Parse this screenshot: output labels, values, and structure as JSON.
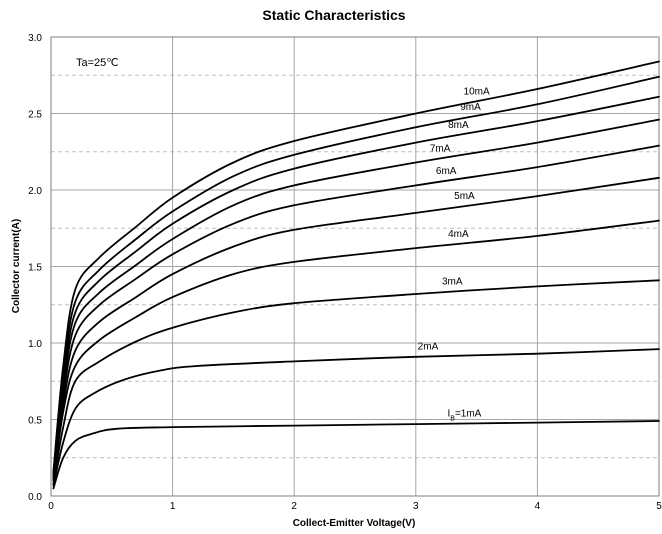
{
  "chart_data": {
    "type": "line",
    "title": "Static Characteristics",
    "xlabel": "Collect-Emitter Voltage(V)",
    "ylabel": "Collector current(A)",
    "xlim": [
      0,
      5
    ],
    "ylim": [
      0,
      3.0
    ],
    "x_ticks": [
      "0",
      "1",
      "2",
      "3",
      "4",
      "5"
    ],
    "y_ticks": [
      "0.0",
      "0.5",
      "1.0",
      "1.5",
      "2.0",
      "2.5",
      "3.0"
    ],
    "grid": {
      "major": true,
      "minor_horizontal_dashed": true
    },
    "annotation": "Ta=25℃",
    "series": [
      {
        "name": "I_B=1mA",
        "label_main": "I",
        "label_sub": "B",
        "label_rest": "=1mA",
        "points": [
          [
            0.02,
            0.05
          ],
          [
            0.1,
            0.25
          ],
          [
            0.2,
            0.36
          ],
          [
            0.35,
            0.41
          ],
          [
            0.55,
            0.44
          ],
          [
            1.0,
            0.45
          ],
          [
            2.0,
            0.46
          ],
          [
            3.0,
            0.47
          ],
          [
            4.0,
            0.48
          ],
          [
            5.0,
            0.49
          ]
        ]
      },
      {
        "name": "2mA",
        "points": [
          [
            0.02,
            0.07
          ],
          [
            0.1,
            0.35
          ],
          [
            0.2,
            0.57
          ],
          [
            0.35,
            0.67
          ],
          [
            0.6,
            0.76
          ],
          [
            0.9,
            0.82
          ],
          [
            1.2,
            0.85
          ],
          [
            2.0,
            0.88
          ],
          [
            3.0,
            0.91
          ],
          [
            4.0,
            0.93
          ],
          [
            5.0,
            0.96
          ]
        ]
      },
      {
        "name": "3mA",
        "points": [
          [
            0.02,
            0.08
          ],
          [
            0.1,
            0.45
          ],
          [
            0.2,
            0.75
          ],
          [
            0.4,
            0.88
          ],
          [
            0.7,
            1.01
          ],
          [
            1.0,
            1.1
          ],
          [
            1.5,
            1.2
          ],
          [
            2.0,
            1.26
          ],
          [
            3.0,
            1.32
          ],
          [
            4.0,
            1.37
          ],
          [
            5.0,
            1.41
          ]
        ]
      },
      {
        "name": "4mA",
        "points": [
          [
            0.02,
            0.1
          ],
          [
            0.1,
            0.55
          ],
          [
            0.2,
            0.85
          ],
          [
            0.4,
            1.02
          ],
          [
            0.7,
            1.17
          ],
          [
            1.0,
            1.3
          ],
          [
            1.5,
            1.45
          ],
          [
            2.0,
            1.53
          ],
          [
            3.0,
            1.62
          ],
          [
            4.0,
            1.7
          ],
          [
            5.0,
            1.8
          ]
        ]
      },
      {
        "name": "5mA",
        "points": [
          [
            0.02,
            0.11
          ],
          [
            0.1,
            0.6
          ],
          [
            0.2,
            0.95
          ],
          [
            0.4,
            1.14
          ],
          [
            0.7,
            1.3
          ],
          [
            1.0,
            1.45
          ],
          [
            1.5,
            1.63
          ],
          [
            2.0,
            1.74
          ],
          [
            3.0,
            1.85
          ],
          [
            4.0,
            1.96
          ],
          [
            5.0,
            2.08
          ]
        ]
      },
      {
        "name": "6mA",
        "points": [
          [
            0.02,
            0.12
          ],
          [
            0.1,
            0.65
          ],
          [
            0.2,
            1.05
          ],
          [
            0.4,
            1.25
          ],
          [
            0.7,
            1.42
          ],
          [
            1.0,
            1.58
          ],
          [
            1.5,
            1.78
          ],
          [
            2.0,
            1.9
          ],
          [
            3.0,
            2.03
          ],
          [
            4.0,
            2.15
          ],
          [
            5.0,
            2.29
          ]
        ]
      },
      {
        "name": "7mA",
        "points": [
          [
            0.02,
            0.13
          ],
          [
            0.1,
            0.7
          ],
          [
            0.2,
            1.13
          ],
          [
            0.4,
            1.33
          ],
          [
            0.7,
            1.51
          ],
          [
            1.0,
            1.68
          ],
          [
            1.5,
            1.9
          ],
          [
            2.0,
            2.03
          ],
          [
            3.0,
            2.18
          ],
          [
            4.0,
            2.31
          ],
          [
            5.0,
            2.46
          ]
        ]
      },
      {
        "name": "8mA",
        "points": [
          [
            0.02,
            0.14
          ],
          [
            0.1,
            0.75
          ],
          [
            0.2,
            1.2
          ],
          [
            0.4,
            1.41
          ],
          [
            0.7,
            1.6
          ],
          [
            1.0,
            1.78
          ],
          [
            1.5,
            2.0
          ],
          [
            2.0,
            2.14
          ],
          [
            3.0,
            2.31
          ],
          [
            4.0,
            2.45
          ],
          [
            5.0,
            2.61
          ]
        ]
      },
      {
        "name": "9mA",
        "points": [
          [
            0.02,
            0.15
          ],
          [
            0.1,
            0.8
          ],
          [
            0.2,
            1.27
          ],
          [
            0.4,
            1.48
          ],
          [
            0.7,
            1.68
          ],
          [
            1.0,
            1.86
          ],
          [
            1.5,
            2.09
          ],
          [
            2.0,
            2.23
          ],
          [
            3.0,
            2.41
          ],
          [
            4.0,
            2.56
          ],
          [
            5.0,
            2.74
          ]
        ]
      },
      {
        "name": "10mA",
        "points": [
          [
            0.02,
            0.16
          ],
          [
            0.1,
            0.85
          ],
          [
            0.2,
            1.35
          ],
          [
            0.4,
            1.56
          ],
          [
            0.7,
            1.76
          ],
          [
            1.0,
            1.95
          ],
          [
            1.5,
            2.18
          ],
          [
            2.0,
            2.32
          ],
          [
            3.0,
            2.5
          ],
          [
            4.0,
            2.66
          ],
          [
            5.0,
            2.84
          ]
        ]
      }
    ]
  }
}
